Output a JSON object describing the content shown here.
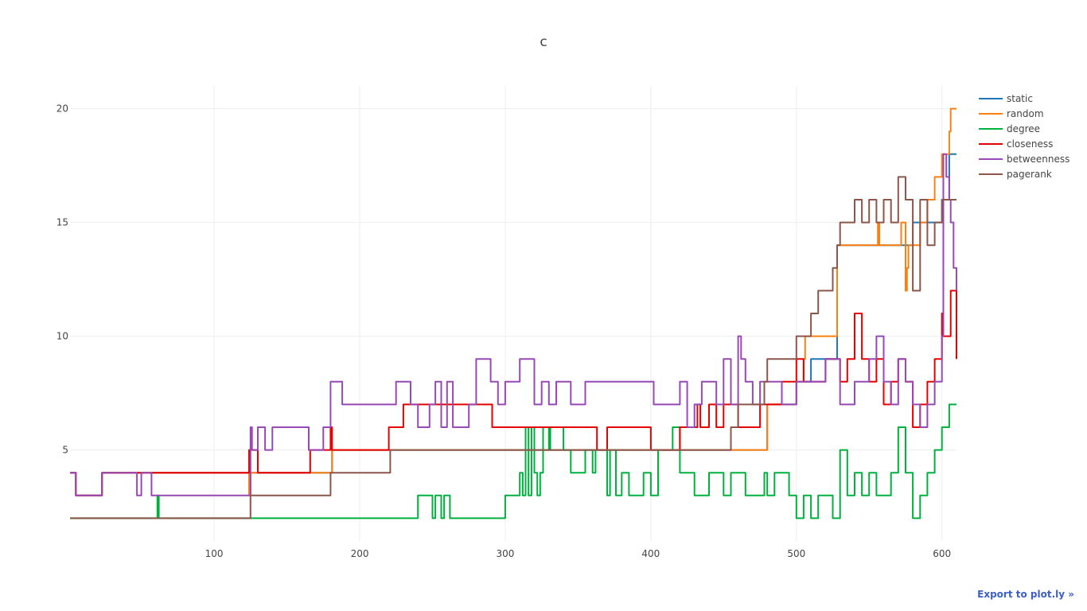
{
  "page": {
    "export_label": "Export to plot.ly »"
  },
  "chart_data": {
    "type": "line",
    "title": "c",
    "xlabel": "",
    "ylabel": "",
    "xlim": [
      1,
      610
    ],
    "ylim": [
      1,
      21
    ],
    "xticks": [
      100,
      200,
      300,
      400,
      500,
      600
    ],
    "yticks": [
      5,
      10,
      15,
      20
    ],
    "grid": true,
    "legend_position": "top-right",
    "series": [
      {
        "name": "static",
        "color": "#1f77b4",
        "x": [
          1,
          4,
          5,
          22,
          23,
          123,
          124,
          125,
          175,
          180,
          181,
          219,
          220,
          470,
          475,
          480,
          500,
          510,
          527,
          528,
          570,
          580,
          590,
          595,
          600,
          601,
          605,
          606,
          610
        ],
        "y": [
          4,
          4,
          3,
          3,
          4,
          4,
          3,
          4,
          4,
          4,
          5,
          5,
          5,
          5,
          5,
          7,
          8,
          9,
          9,
          14,
          14,
          15,
          15,
          15,
          16,
          16,
          18,
          18,
          18
        ]
      },
      {
        "name": "random",
        "color": "#ff7f0e",
        "x": [
          1,
          4,
          5,
          22,
          23,
          123,
          124,
          125,
          175,
          180,
          181,
          219,
          220,
          470,
          475,
          480,
          500,
          505,
          506,
          527,
          528,
          555,
          556,
          557,
          572,
          575,
          576,
          577,
          580,
          585,
          590,
          595,
          600,
          601,
          605,
          606,
          610
        ],
        "y": [
          4,
          4,
          3,
          3,
          4,
          4,
          3,
          4,
          4,
          4,
          5,
          5,
          5,
          5,
          5,
          7,
          8,
          9,
          10,
          10,
          14,
          14,
          15,
          14,
          15,
          12,
          13,
          14,
          14,
          15,
          16,
          17,
          18,
          18,
          19,
          20,
          20
        ]
      },
      {
        "name": "degree",
        "color": "#00b13e",
        "x": [
          1,
          60,
          61,
          62,
          63,
          123,
          124,
          180,
          238,
          240,
          245,
          250,
          252,
          256,
          258,
          262,
          264,
          280,
          300,
          301,
          310,
          312,
          314,
          316,
          318,
          320,
          322,
          324,
          326,
          330,
          331,
          340,
          345,
          355,
          360,
          362,
          370,
          372,
          376,
          380,
          385,
          390,
          395,
          400,
          405,
          410,
          415,
          420,
          425,
          430,
          440,
          445,
          450,
          455,
          460,
          465,
          475,
          478,
          480,
          485,
          490,
          495,
          500,
          505,
          510,
          515,
          520,
          525,
          530,
          535,
          540,
          545,
          550,
          555,
          560,
          565,
          570,
          575,
          580,
          585,
          590,
          595,
          600,
          605,
          610
        ],
        "y": [
          2,
          2,
          3,
          2,
          2,
          2,
          2,
          2,
          2,
          3,
          3,
          2,
          3,
          2,
          3,
          2,
          2,
          2,
          3,
          3,
          4,
          3,
          6,
          3,
          6,
          4,
          3,
          4,
          6,
          5,
          6,
          5,
          4,
          5,
          4,
          5,
          3,
          5,
          3,
          4,
          3,
          3,
          4,
          3,
          5,
          5,
          6,
          4,
          4,
          3,
          4,
          4,
          3,
          4,
          4,
          3,
          3,
          4,
          3,
          4,
          4,
          3,
          2,
          3,
          2,
          3,
          3,
          2,
          5,
          3,
          4,
          3,
          4,
          3,
          3,
          4,
          6,
          4,
          2,
          3,
          4,
          5,
          6,
          7,
          7
        ]
      },
      {
        "name": "closeness",
        "color": "#e50000",
        "x": [
          1,
          4,
          5,
          22,
          23,
          123,
          124,
          125,
          130,
          165,
          166,
          180,
          181,
          219,
          220,
          229,
          230,
          290,
          291,
          362,
          363,
          370,
          400,
          420,
          425,
          432,
          434,
          440,
          445,
          450,
          460,
          465,
          475,
          480,
          490,
          500,
          505,
          510,
          520,
          530,
          535,
          540,
          545,
          550,
          555,
          560,
          565,
          570,
          575,
          580,
          585,
          590,
          595,
          600,
          601,
          605,
          606,
          610
        ],
        "y": [
          4,
          4,
          3,
          3,
          4,
          4,
          5,
          5,
          4,
          4,
          5,
          6,
          5,
          5,
          6,
          6,
          7,
          7,
          6,
          6,
          5,
          6,
          5,
          6,
          6,
          7,
          6,
          7,
          6,
          7,
          6,
          6,
          7,
          7,
          8,
          9,
          8,
          8,
          9,
          8,
          9,
          11,
          9,
          8,
          9,
          7,
          8,
          9,
          8,
          6,
          7,
          8,
          9,
          11,
          10,
          10,
          12,
          9
        ]
      },
      {
        "name": "betweenness",
        "color": "#9749b5",
        "x": [
          1,
          4,
          5,
          22,
          23,
          45,
          47,
          50,
          55,
          57,
          123,
          124,
          125,
          126,
          130,
          135,
          140,
          160,
          165,
          175,
          180,
          185,
          188,
          195,
          200,
          220,
          225,
          235,
          240,
          248,
          252,
          256,
          260,
          264,
          275,
          280,
          290,
          295,
          300,
          305,
          310,
          320,
          325,
          330,
          335,
          345,
          355,
          360,
          400,
          402,
          415,
          420,
          425,
          430,
          435,
          445,
          450,
          455,
          460,
          462,
          465,
          470,
          475,
          480,
          490,
          500,
          510,
          520,
          530,
          540,
          550,
          555,
          560,
          565,
          570,
          575,
          580,
          585,
          590,
          595,
          600,
          601,
          603,
          605,
          606,
          608,
          610
        ],
        "y": [
          4,
          4,
          3,
          3,
          4,
          4,
          3,
          4,
          4,
          3,
          3,
          3,
          6,
          5,
          6,
          5,
          6,
          6,
          5,
          6,
          8,
          8,
          7,
          7,
          7,
          7,
          8,
          7,
          6,
          7,
          8,
          6,
          8,
          6,
          7,
          9,
          8,
          7,
          8,
          8,
          9,
          7,
          8,
          7,
          8,
          7,
          8,
          8,
          8,
          7,
          7,
          8,
          6,
          7,
          8,
          7,
          9,
          7,
          10,
          9,
          8,
          7,
          8,
          8,
          7,
          8,
          8,
          9,
          7,
          8,
          9,
          10,
          8,
          7,
          9,
          8,
          7,
          6,
          7,
          8,
          10,
          18,
          17,
          16,
          15,
          13,
          12
        ]
      },
      {
        "name": "pagerank",
        "color": "#8c564b",
        "x": [
          1,
          123,
          124,
          125,
          175,
          179,
          180,
          220,
          221,
          222,
          450,
          455,
          460,
          475,
          478,
          480,
          485,
          500,
          505,
          510,
          515,
          520,
          525,
          528,
          530,
          535,
          540,
          545,
          550,
          555,
          560,
          565,
          570,
          575,
          580,
          585,
          590,
          595,
          600,
          605,
          610
        ],
        "y": [
          2,
          2,
          2,
          3,
          3,
          3,
          4,
          4,
          5,
          5,
          5,
          6,
          7,
          7,
          8,
          9,
          9,
          10,
          10,
          11,
          12,
          12,
          13,
          14,
          15,
          15,
          16,
          15,
          16,
          15,
          16,
          15,
          17,
          16,
          12,
          16,
          14,
          15,
          16,
          16,
          16
        ]
      }
    ]
  }
}
